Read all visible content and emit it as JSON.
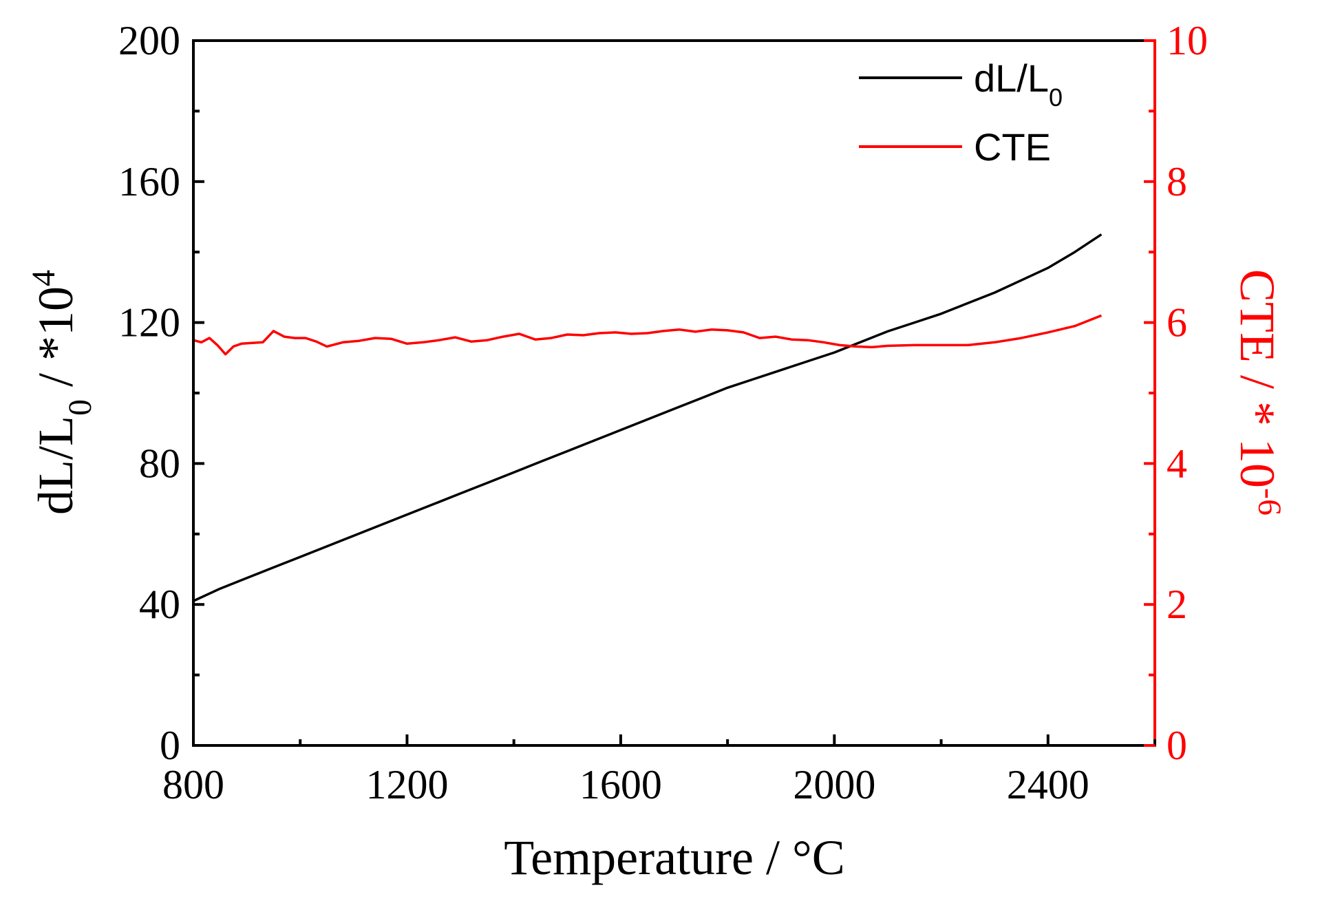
{
  "chart_data": {
    "type": "line",
    "xlabel": "Temperature / °C",
    "ylabel_left": {
      "main": "dL/L",
      "sub": "0",
      "rest": " / *10",
      "sup": "4"
    },
    "ylabel_right": {
      "main": "CTE / * 10",
      "sup": "-6"
    },
    "xlim": [
      800,
      2600
    ],
    "ylim_left": [
      0,
      200
    ],
    "ylim_right": [
      0,
      10
    ],
    "x_ticks": [
      800,
      1200,
      1600,
      2000,
      2400
    ],
    "y_left_ticks": [
      0,
      40,
      80,
      120,
      160,
      200
    ],
    "y_right_ticks": [
      0,
      2,
      4,
      6,
      8,
      10
    ],
    "legend": {
      "position": "top-right",
      "entries": [
        {
          "main": "dL/L",
          "sub": "0",
          "color": "#000000"
        },
        {
          "main": "CTE",
          "sub": "",
          "color": "#ff0000"
        }
      ]
    },
    "colors": {
      "dl": "#000000",
      "cte": "#ff0000",
      "axis_left": "#000000",
      "axis_right": "#ff0000"
    },
    "series": [
      {
        "name": "dL/L0",
        "axis": "left",
        "x": [
          800,
          850,
          900,
          950,
          1000,
          1050,
          1100,
          1150,
          1200,
          1250,
          1300,
          1350,
          1400,
          1450,
          1500,
          1550,
          1600,
          1650,
          1700,
          1750,
          1800,
          1850,
          1900,
          1950,
          2000,
          2050,
          2100,
          2150,
          2200,
          2250,
          2300,
          2350,
          2400,
          2450,
          2500
        ],
        "values": [
          41,
          44.5,
          47.5,
          50.5,
          53.5,
          56.5,
          59.5,
          62.5,
          65.5,
          68.5,
          71.5,
          74.5,
          77.5,
          80.5,
          83.5,
          86.5,
          89.5,
          92.5,
          95.5,
          98.5,
          101.5,
          104,
          106.5,
          109,
          111.5,
          114.5,
          117.5,
          120,
          122.5,
          125.5,
          128.5,
          132,
          135.5,
          140,
          145
        ]
      },
      {
        "name": "CTE",
        "axis": "right",
        "x": [
          800,
          815,
          830,
          845,
          860,
          875,
          890,
          910,
          930,
          950,
          970,
          990,
          1010,
          1030,
          1050,
          1080,
          1110,
          1140,
          1170,
          1200,
          1230,
          1260,
          1290,
          1320,
          1350,
          1380,
          1410,
          1440,
          1470,
          1500,
          1530,
          1560,
          1590,
          1620,
          1650,
          1680,
          1710,
          1740,
          1770,
          1800,
          1830,
          1860,
          1890,
          1920,
          1950,
          1980,
          2010,
          2040,
          2070,
          2100,
          2150,
          2200,
          2250,
          2300,
          2350,
          2400,
          2450,
          2500
        ],
        "values": [
          5.75,
          5.72,
          5.78,
          5.68,
          5.55,
          5.66,
          5.7,
          5.71,
          5.72,
          5.88,
          5.8,
          5.78,
          5.78,
          5.73,
          5.66,
          5.72,
          5.74,
          5.78,
          5.77,
          5.7,
          5.72,
          5.75,
          5.79,
          5.73,
          5.75,
          5.8,
          5.84,
          5.76,
          5.78,
          5.83,
          5.82,
          5.85,
          5.86,
          5.84,
          5.85,
          5.88,
          5.9,
          5.87,
          5.9,
          5.89,
          5.86,
          5.78,
          5.8,
          5.76,
          5.75,
          5.72,
          5.68,
          5.66,
          5.65,
          5.67,
          5.68,
          5.68,
          5.68,
          5.72,
          5.78,
          5.86,
          5.95,
          6.1
        ]
      }
    ]
  }
}
